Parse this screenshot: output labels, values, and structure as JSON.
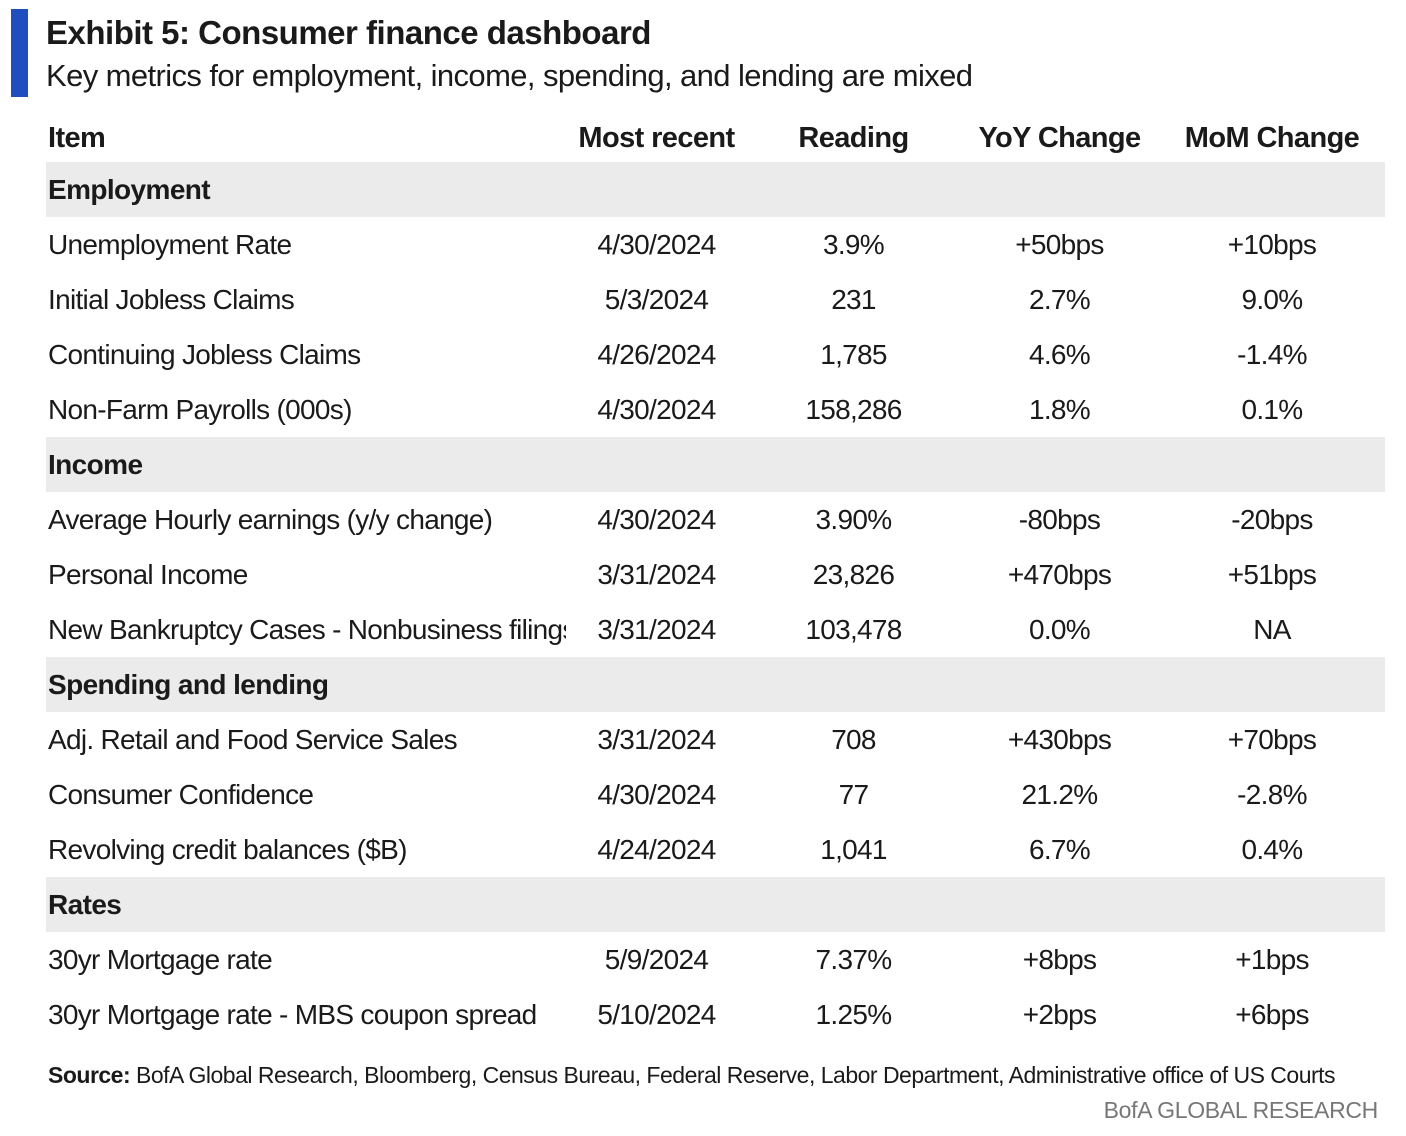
{
  "header": {
    "title": "Exhibit 5: Consumer finance dashboard",
    "subtitle": "Key metrics for employment, income, spending, and lending are mixed",
    "accent_color": "#1f4fbf"
  },
  "table": {
    "columns": [
      "Item",
      "Most recent",
      "Reading",
      "YoY Change",
      "MoM Change"
    ],
    "colors": {
      "negative_bg": "#f5cdd3",
      "negative_text": "#b12a30",
      "positive_bg": "#d6f0d4",
      "positive_text": "#2f7a36"
    },
    "sections": [
      {
        "name": "Employment",
        "rows": [
          {
            "item": "Unemployment Rate",
            "date": "4/30/2024",
            "reading": "3.9%",
            "yoy": "+50bps",
            "yoy_status": "negative",
            "mom": "+10bps",
            "mom_status": "negative"
          },
          {
            "item": "Initial  Jobless Claims",
            "date": "5/3/2024",
            "reading": "231",
            "yoy": "2.7%",
            "yoy_status": "negative",
            "mom": "9.0%",
            "mom_status": "negative"
          },
          {
            "item": "Continuing Jobless Claims",
            "date": "4/26/2024",
            "reading": "1,785",
            "yoy": "4.6%",
            "yoy_status": "negative",
            "mom": "-1.4%",
            "mom_status": "positive"
          },
          {
            "item": "Non-Farm Payrolls (000s)",
            "date": "4/30/2024",
            "reading": "158,286",
            "yoy": "1.8%",
            "yoy_status": "positive",
            "mom": "0.1%",
            "mom_status": "positive"
          }
        ]
      },
      {
        "name": "Income",
        "rows": [
          {
            "item": "Average Hourly earnings (y/y change)",
            "date": "4/30/2024",
            "reading": "3.90%",
            "yoy": "-80bps",
            "yoy_status": "negative",
            "mom": "-20bps",
            "mom_status": "negative"
          },
          {
            "item": "Personal Income",
            "date": "3/31/2024",
            "reading": "23,826",
            "yoy": "+470bps",
            "yoy_status": "positive",
            "mom": "+51bps",
            "mom_status": "positive"
          },
          {
            "item": "New Bankruptcy Cases - Nonbusiness filings",
            "date": "3/31/2024",
            "reading": "103,478",
            "yoy": "0.0%",
            "yoy_status": "neutral",
            "mom": "NA",
            "mom_status": "neutral"
          }
        ]
      },
      {
        "name": "Spending and lending",
        "rows": [
          {
            "item": "Adj. Retail and Food Service Sales",
            "date": "3/31/2024",
            "reading": "708",
            "yoy": "+430bps",
            "yoy_status": "positive",
            "mom": "+70bps",
            "mom_status": "positive"
          },
          {
            "item": "Consumer Confidence",
            "date": "4/30/2024",
            "reading": "77",
            "yoy": "21.2%",
            "yoy_status": "positive",
            "mom": "-2.8%",
            "mom_status": "negative"
          },
          {
            "item": "Revolving credit balances ($B)",
            "date": "4/24/2024",
            "reading": "1,041",
            "yoy": "6.7%",
            "yoy_status": "positive",
            "mom": "0.4%",
            "mom_status": "positive"
          }
        ]
      },
      {
        "name": "Rates",
        "rows": [
          {
            "item": "30yr Mortgage rate",
            "date": "5/9/2024",
            "reading": "7.37%",
            "yoy": "+8bps",
            "yoy_status": "negative",
            "mom": "+1bps",
            "mom_status": "negative"
          },
          {
            "item": "30yr Mortgage rate - MBS coupon spread",
            "date": "5/10/2024",
            "reading": "1.25%",
            "yoy": "+2bps",
            "yoy_status": "positive",
            "mom": "+6bps",
            "mom_status": "positive"
          }
        ]
      }
    ]
  },
  "footer": {
    "source_label": "Source:",
    "source_text": "BofA Global Research, Bloomberg, Census  Bureau, Federal Reserve, Labor Department, Administrative office of US Courts",
    "brand": "BofA GLOBAL RESEARCH"
  }
}
